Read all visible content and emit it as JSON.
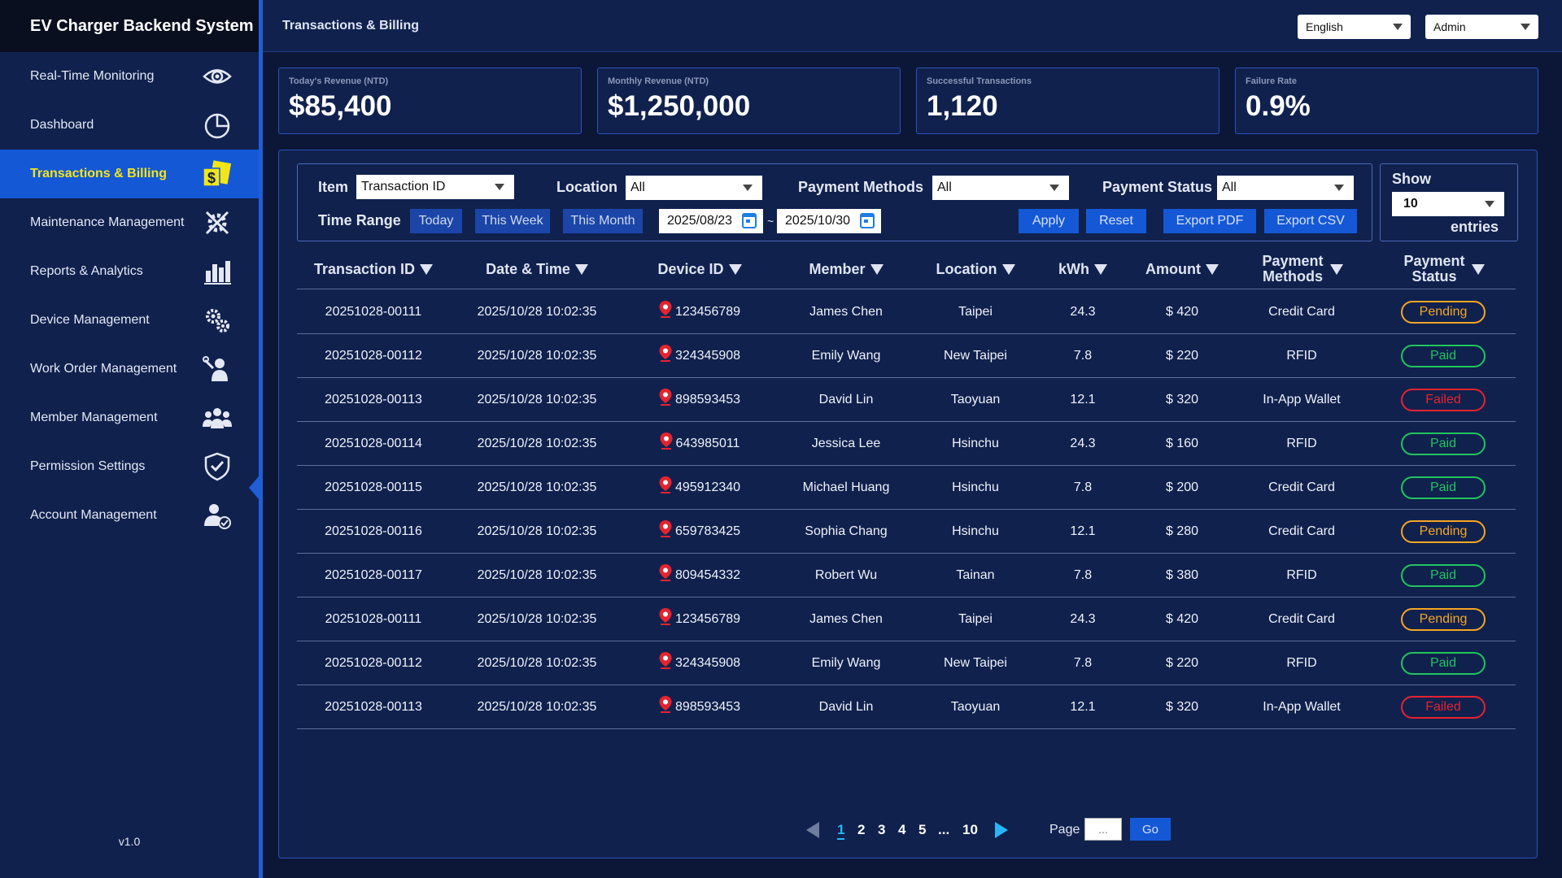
{
  "app": {
    "title": "EV Charger Backend System",
    "version": "v1.0"
  },
  "sidebar": {
    "items": [
      {
        "label": "Real-Time Monitoring",
        "icon": "eye-icon"
      },
      {
        "label": "Dashboard",
        "icon": "pie-chart-icon"
      },
      {
        "label": "Transactions & Billing",
        "icon": "billing-icon",
        "active": true
      },
      {
        "label": "Maintenance Management",
        "icon": "tools-icon"
      },
      {
        "label": "Reports & Analytics",
        "icon": "bar-chart-icon"
      },
      {
        "label": "Device Management",
        "icon": "gears-icon"
      },
      {
        "label": "Work Order Management",
        "icon": "worker-icon"
      },
      {
        "label": "Member Management",
        "icon": "users-icon"
      },
      {
        "label": "Permission Settings",
        "icon": "shield-check-icon"
      },
      {
        "label": "Account Management",
        "icon": "user-check-icon"
      }
    ]
  },
  "header": {
    "title": "Transactions & Billing",
    "language": "English",
    "role": "Admin"
  },
  "stats": [
    {
      "label": "Today's Revenue (NTD)",
      "value": "$85,400"
    },
    {
      "label": "Monthly Revenue (NTD)",
      "value": "$1,250,000"
    },
    {
      "label": "Successful Transactions",
      "value": "1,120"
    },
    {
      "label": "Failure Rate",
      "value": "0.9%"
    }
  ],
  "filters": {
    "item_label": "Item",
    "item_value": "Transaction ID",
    "location_label": "Location",
    "location_value": "All",
    "payment_methods_label": "Payment Methods",
    "payment_methods_value": "All",
    "payment_status_label": "Payment Status",
    "payment_status_value": "All",
    "time_range_label": "Time Range",
    "today": "Today",
    "this_week": "This Week",
    "this_month": "This Month",
    "date_from": "2025/08/23",
    "date_sep": "~",
    "date_to": "2025/10/30",
    "apply": "Apply",
    "reset": "Reset",
    "export_pdf": "Export PDF",
    "export_csv": "Export CSV"
  },
  "show": {
    "label": "Show",
    "value": "10",
    "suffix": "entries"
  },
  "table": {
    "columns": [
      "Transaction ID",
      "Date & Time",
      "Device ID",
      "Member",
      "Location",
      "kWh",
      "Amount",
      "Payment Methods",
      "Payment Status"
    ],
    "rows": [
      [
        "20251028-00111",
        "2025/10/28 10:02:35",
        "123456789",
        "James Chen",
        "Taipei",
        "24.3",
        "$ 420",
        "Credit Card",
        "Pending"
      ],
      [
        "20251028-00112",
        "2025/10/28 10:02:35",
        "324345908",
        "Emily Wang",
        "New Taipei",
        "7.8",
        "$ 220",
        "RFID",
        "Paid"
      ],
      [
        "20251028-00113",
        "2025/10/28 10:02:35",
        "898593453",
        "David Lin",
        "Taoyuan",
        "12.1",
        "$ 320",
        "In-App Wallet",
        "Failed"
      ],
      [
        "20251028-00114",
        "2025/10/28 10:02:35",
        "643985011",
        "Jessica Lee",
        "Hsinchu",
        "24.3",
        "$ 160",
        "RFID",
        "Paid"
      ],
      [
        "20251028-00115",
        "2025/10/28 10:02:35",
        "495912340",
        "Michael Huang",
        "Hsinchu",
        "7.8",
        "$ 200",
        "Credit Card",
        "Paid"
      ],
      [
        "20251028-00116",
        "2025/10/28 10:02:35",
        "659783425",
        "Sophia Chang",
        "Hsinchu",
        "12.1",
        "$ 280",
        "Credit Card",
        "Pending"
      ],
      [
        "20251028-00117",
        "2025/10/28 10:02:35",
        "809454332",
        "Robert Wu",
        "Tainan",
        "7.8",
        "$ 380",
        "RFID",
        "Paid"
      ],
      [
        "20251028-00111",
        "2025/10/28 10:02:35",
        "123456789",
        "James Chen",
        "Taipei",
        "24.3",
        "$ 420",
        "Credit Card",
        "Pending"
      ],
      [
        "20251028-00112",
        "2025/10/28 10:02:35",
        "324345908",
        "Emily Wang",
        "New Taipei",
        "7.8",
        "$ 220",
        "RFID",
        "Paid"
      ],
      [
        "20251028-00113",
        "2025/10/28 10:02:35",
        "898593453",
        "David Lin",
        "Taoyuan",
        "12.1",
        "$ 320",
        "In-App Wallet",
        "Failed"
      ]
    ]
  },
  "pagination": {
    "pages": [
      "1",
      "2",
      "3",
      "4",
      "5",
      "...",
      "10"
    ],
    "current": "1",
    "page_label": "Page",
    "page_input_placeholder": "...",
    "go": "Go"
  },
  "colors": {
    "accent": "#1458d6",
    "active_text": "#f2e51a",
    "pending": "#f5a623",
    "paid": "#21c55d",
    "failed": "#e5232f",
    "pin": "#e5232f"
  }
}
